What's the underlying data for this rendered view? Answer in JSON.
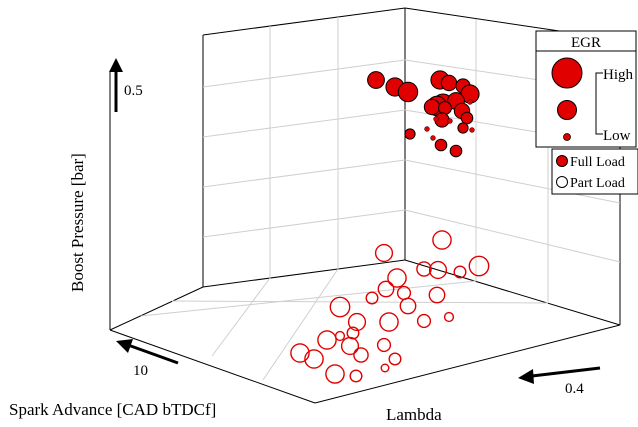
{
  "chart_data": {
    "type": "scatter",
    "projection": "3d",
    "title": "",
    "axes": {
      "x": {
        "label": "Spark Advance [CAD bTDCf]",
        "marked_tick": "10",
        "arrow": "increasing toward lower-left"
      },
      "y": {
        "label": "Lambda",
        "marked_tick": "0.4",
        "arrow": "increasing toward left"
      },
      "z": {
        "label": "Boost Pressure [bar]",
        "marked_tick": "0.5",
        "arrow": "increasing upward"
      }
    },
    "grid": true,
    "legend": {
      "position": "top-right",
      "size_title": "EGR",
      "size_high": "High",
      "size_low": "Low",
      "series_labels": [
        "Full Load",
        "Part Load"
      ]
    },
    "series": [
      {
        "name": "Full Load",
        "color": "#e00000",
        "filled": true,
        "points": [
          {
            "screen": [
              376,
              80
            ],
            "egr": 0.5
          },
          {
            "screen": [
              395,
              87
            ],
            "egr": 0.55
          },
          {
            "screen": [
              408,
              92
            ],
            "egr": 0.6
          },
          {
            "screen": [
              440,
              80
            ],
            "egr": 0.55
          },
          {
            "screen": [
              449,
              83
            ],
            "egr": 0.45
          },
          {
            "screen": [
              463,
              86
            ],
            "egr": 0.4
          },
          {
            "screen": [
              443,
              104
            ],
            "egr": 0.62
          },
          {
            "screen": [
              470,
              94
            ],
            "egr": 0.55
          },
          {
            "screen": [
              437,
              106
            ],
            "egr": 0.6
          },
          {
            "screen": [
              456,
              101
            ],
            "egr": 0.5
          },
          {
            "screen": [
              432,
              107
            ],
            "egr": 0.45
          },
          {
            "screen": [
              462,
              111
            ],
            "egr": 0.45
          },
          {
            "screen": [
              445,
              108
            ],
            "egr": 0.35
          },
          {
            "screen": [
              442,
              120
            ],
            "egr": 0.4
          },
          {
            "screen": [
              467,
              118
            ],
            "egr": 0.3
          },
          {
            "screen": [
              410,
              134
            ],
            "egr": 0.25
          },
          {
            "screen": [
              463,
              128
            ],
            "egr": 0.25
          },
          {
            "screen": [
              441,
              145
            ],
            "egr": 0.3
          },
          {
            "screen": [
              456,
              151
            ],
            "egr": 0.3
          },
          {
            "screen": [
              427,
              129
            ],
            "egr": 0.05
          },
          {
            "screen": [
              450,
              121
            ],
            "egr": 0.05
          },
          {
            "screen": [
              436,
              119
            ],
            "egr": 0.05
          },
          {
            "screen": [
              472,
              130
            ],
            "egr": 0.05
          },
          {
            "screen": [
              433,
              138
            ],
            "egr": 0.05
          },
          {
            "screen": [
              470,
              102
            ],
            "egr": 0.05
          }
        ]
      },
      {
        "name": "Part Load",
        "color": "#e00000",
        "filled": false,
        "points": [
          {
            "screen": [
              384,
              253
            ],
            "egr": 0.5
          },
          {
            "screen": [
              397,
              278
            ],
            "egr": 0.55
          },
          {
            "screen": [
              442,
              240
            ],
            "egr": 0.55
          },
          {
            "screen": [
              424,
              269
            ],
            "egr": 0.4
          },
          {
            "screen": [
              479,
              266
            ],
            "egr": 0.6
          },
          {
            "screen": [
              438,
              270
            ],
            "egr": 0.5
          },
          {
            "screen": [
              386,
              289
            ],
            "egr": 0.45
          },
          {
            "screen": [
              437,
              295
            ],
            "egr": 0.45
          },
          {
            "screen": [
              460,
              272
            ],
            "egr": 0.3
          },
          {
            "screen": [
              404,
              293
            ],
            "egr": 0.35
          },
          {
            "screen": [
              372,
              298
            ],
            "egr": 0.3
          },
          {
            "screen": [
              340,
              307
            ],
            "egr": 0.6
          },
          {
            "screen": [
              408,
              306
            ],
            "egr": 0.45
          },
          {
            "screen": [
              357,
              322
            ],
            "egr": 0.5
          },
          {
            "screen": [
              389,
              322
            ],
            "egr": 0.55
          },
          {
            "screen": [
              424,
              321
            ],
            "egr": 0.35
          },
          {
            "screen": [
              449,
              317
            ],
            "egr": 0.2
          },
          {
            "screen": [
              353,
              333
            ],
            "egr": 0.3
          },
          {
            "screen": [
              327,
              340
            ],
            "egr": 0.55
          },
          {
            "screen": [
              350,
              346
            ],
            "egr": 0.5
          },
          {
            "screen": [
              300,
              353
            ],
            "egr": 0.55
          },
          {
            "screen": [
              314,
              359
            ],
            "egr": 0.55
          },
          {
            "screen": [
              335,
              374
            ],
            "egr": 0.55
          },
          {
            "screen": [
              361,
              355
            ],
            "egr": 0.4
          },
          {
            "screen": [
              384,
              345
            ],
            "egr": 0.35
          },
          {
            "screen": [
              395,
              359
            ],
            "egr": 0.3
          },
          {
            "screen": [
              356,
              376
            ],
            "egr": 0.3
          },
          {
            "screen": [
              385,
              368
            ],
            "egr": 0.15
          },
          {
            "screen": [
              340,
              336
            ],
            "egr": 0.2
          }
        ]
      }
    ]
  }
}
